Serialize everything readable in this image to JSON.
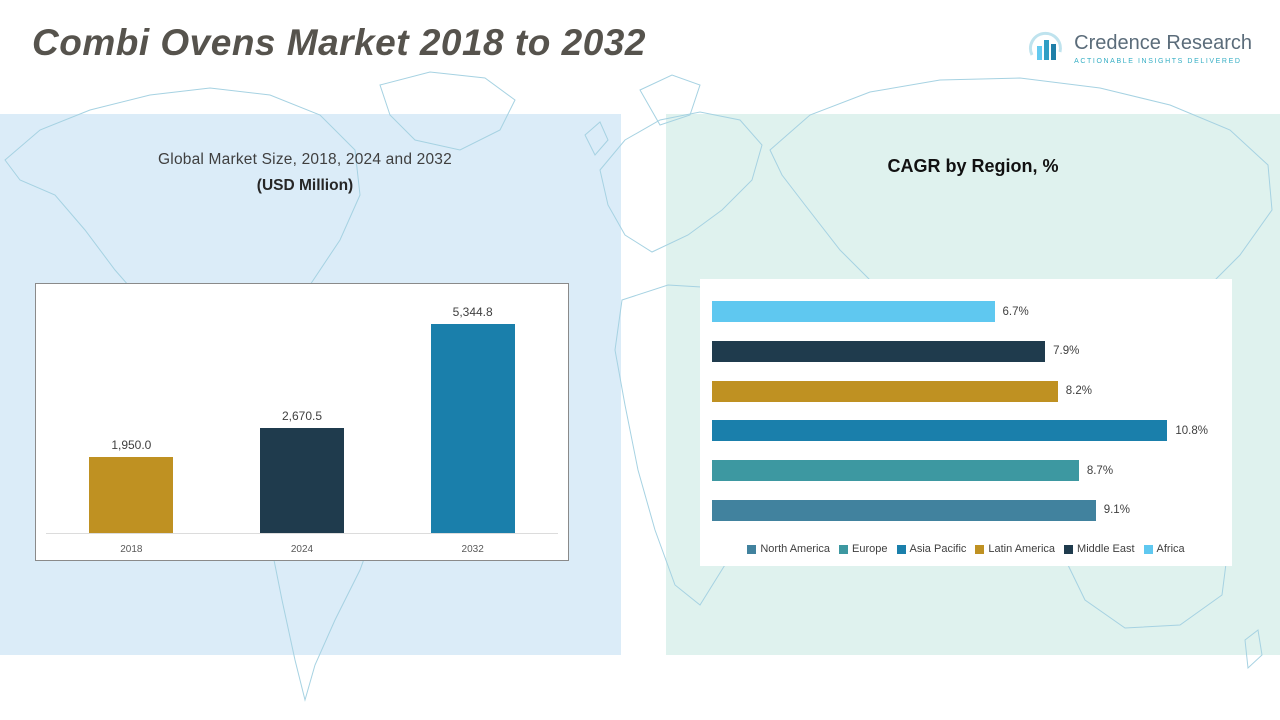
{
  "header": {
    "title": "Combi Ovens Market 2018 to 2032"
  },
  "logo": {
    "brand": "Credence Research",
    "tagline": "Actionable Insights Delivered"
  },
  "left_panel": {
    "title_line1": "Global Market Size, 2018, 2024 and 2032",
    "title_line2": "(USD Million)"
  },
  "right_panel": {
    "title": "CAGR by Region, %"
  },
  "chart_data": [
    {
      "type": "bar",
      "title": "Global Market Size, 2018, 2024 and 2032 (USD Million)",
      "categories": [
        "2018",
        "2024",
        "2032"
      ],
      "values": [
        1950.0,
        2670.5,
        5344.8
      ],
      "value_labels": [
        "1,950.0",
        "2,670.5",
        "5,344.8"
      ],
      "bar_colors": [
        "#BF9122",
        "#1F3B4D",
        "#1A7FAB"
      ],
      "ylim": [
        0,
        6000
      ],
      "grid": false,
      "legend_position": "none"
    },
    {
      "type": "bar",
      "orientation": "horizontal",
      "title": "CAGR by Region, %",
      "categories_top_to_bottom": [
        "Africa",
        "Middle East",
        "Latin America",
        "Asia Pacific",
        "Europe",
        "North America"
      ],
      "values": [
        6.7,
        7.9,
        8.2,
        10.8,
        8.7,
        9.1
      ],
      "value_labels": [
        "6.7%",
        "7.9%",
        "8.2%",
        "10.8%",
        "8.7%",
        "9.1%"
      ],
      "bar_colors": [
        "#5FC8F0",
        "#1F3B4D",
        "#BF9122",
        "#1A7FAB",
        "#3D98A1",
        "#41829E"
      ],
      "xlim": [
        0,
        12
      ],
      "grid": false,
      "legend_position": "bottom",
      "legend": [
        {
          "label": "North America",
          "color": "#41829E"
        },
        {
          "label": "Europe",
          "color": "#3D98A1"
        },
        {
          "label": "Asia Pacific",
          "color": "#1A7FAB"
        },
        {
          "label": "Latin America",
          "color": "#BF9122"
        },
        {
          "label": "Middle East",
          "color": "#1F3B4D"
        },
        {
          "label": "Africa",
          "color": "#5FC8F0"
        }
      ]
    }
  ]
}
